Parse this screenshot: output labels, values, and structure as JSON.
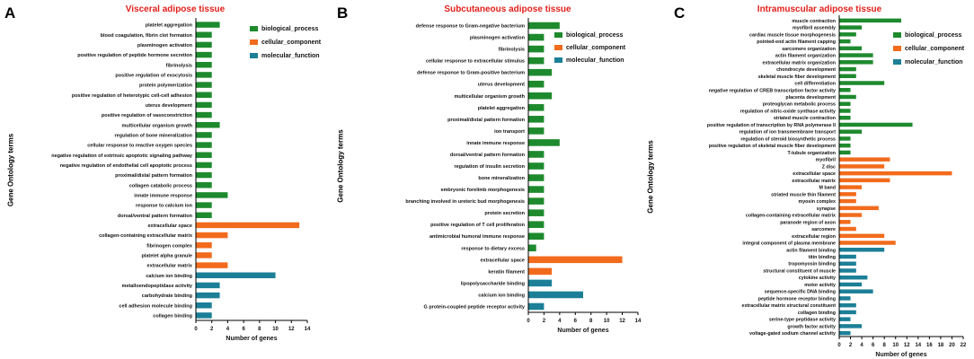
{
  "colors": {
    "biological_process": "#1e8a2e",
    "cellular_component": "#f26b1d",
    "molecular_function": "#1c7f97",
    "title": "#e0201b"
  },
  "chart_data": [
    {
      "type": "bar",
      "orientation": "horizontal",
      "panel_label": "A",
      "title": "Visceral adipose tissue",
      "xlabel": "Number of genes",
      "ylabel": "Gene Ontology terms",
      "xlim": [
        0,
        14
      ],
      "xticks": [
        "0",
        "2",
        "4",
        "6",
        "8",
        "10",
        "12",
        "14"
      ],
      "legend": [
        "biological_process",
        "cellular_component",
        "molecular_function"
      ],
      "legend_position": "top-right",
      "categories": [
        "platelet aggregation",
        "blood coagulation, fibrin clot formation",
        "plasminogen activation",
        "positive regulation of peptide hormone secretion",
        "fibrinolysis",
        "positive regulation of exocytosis",
        "protein polymerization",
        "positive regulation of heterotypic cell-cell adhesion",
        "uterus development",
        "positive regulation of vasoconstriction",
        "multicellular organism growth",
        "regulation of bone mineralization",
        "cellular response to reactive oxygen species",
        "negative regulation of extrinsic apoptotic signaling pathway",
        "negative regulation of endothelial cell apoptotic process",
        "proximal/distal pattern formation",
        "collagen catabolic process",
        "innate immune response",
        "response to calcium ion",
        "dorsal/ventral pattern formation",
        "extracellular space",
        "collagen-containing extracellular matrix",
        "fibrinogen complex",
        "platelet alpha granule",
        "extracellular matrix",
        "calcium ion binding",
        "metalloendopeptidase activity",
        "carbohydrate binding",
        "cell adhesion molecule binding",
        "collagen binding"
      ],
      "values": [
        3,
        2,
        2,
        2,
        2,
        2,
        2,
        2,
        2,
        2,
        3,
        2,
        2,
        2,
        2,
        2,
        2,
        4,
        2,
        2,
        13,
        4,
        2,
        2,
        4,
        10,
        3,
        3,
        2,
        2
      ],
      "groups": [
        "biological_process",
        "biological_process",
        "biological_process",
        "biological_process",
        "biological_process",
        "biological_process",
        "biological_process",
        "biological_process",
        "biological_process",
        "biological_process",
        "biological_process",
        "biological_process",
        "biological_process",
        "biological_process",
        "biological_process",
        "biological_process",
        "biological_process",
        "biological_process",
        "biological_process",
        "biological_process",
        "cellular_component",
        "cellular_component",
        "cellular_component",
        "cellular_component",
        "cellular_component",
        "molecular_function",
        "molecular_function",
        "molecular_function",
        "molecular_function",
        "molecular_function"
      ]
    },
    {
      "type": "bar",
      "orientation": "horizontal",
      "panel_label": "B",
      "title": "Subcutaneous adipose tissue",
      "xlabel": "Number of genes",
      "ylabel": "Gene Ontology terms",
      "xlim": [
        0,
        14
      ],
      "xticks": [
        "0",
        "2",
        "4",
        "6",
        "8",
        "10",
        "12",
        "14"
      ],
      "legend": [
        "biological_process",
        "cellular_component",
        "molecular_function"
      ],
      "legend_position": "top-right",
      "categories": [
        "defense response to Gram-negative bacterium",
        "plasminogen activation",
        "fibrinolysis",
        "cellular response to extracellular stimulus",
        "defense response to Gram-positive bacterium",
        "uterus development",
        "multicellular organism growth",
        "platelet aggregation",
        "proximal/distal pattern formation",
        "ion transport",
        "innate immune response",
        "dorsal/ventral pattern formation",
        "regulation of insulin secretion",
        "bone mineralization",
        "embryonic forelimb morphogenesis",
        "branching involved in ureteric bud morphogenesis",
        "protein secretion",
        "positive regulation of T cell proliferation",
        "antimicrobial humoral immune response",
        "response to dietary excess",
        "extracellular space",
        "keratin filament",
        "lipopolysaccharide binding",
        "calcium ion binding",
        "G protein-coupled peptide receptor activity"
      ],
      "values": [
        4,
        2,
        2,
        2,
        3,
        2,
        3,
        2,
        2,
        2,
        4,
        2,
        2,
        2,
        2,
        2,
        2,
        2,
        2,
        1,
        12,
        3,
        3,
        7,
        2
      ],
      "groups": [
        "biological_process",
        "biological_process",
        "biological_process",
        "biological_process",
        "biological_process",
        "biological_process",
        "biological_process",
        "biological_process",
        "biological_process",
        "biological_process",
        "biological_process",
        "biological_process",
        "biological_process",
        "biological_process",
        "biological_process",
        "biological_process",
        "biological_process",
        "biological_process",
        "biological_process",
        "biological_process",
        "cellular_component",
        "cellular_component",
        "molecular_function",
        "molecular_function",
        "molecular_function"
      ]
    },
    {
      "type": "bar",
      "orientation": "horizontal",
      "panel_label": "C",
      "title": "Intramuscular adipose tissue",
      "xlabel": "Number of genes",
      "ylabel": "Gene Ontology terms",
      "xlim": [
        0,
        22
      ],
      "xticks": [
        "0",
        "2",
        "4",
        "6",
        "8",
        "10",
        "12",
        "14",
        "16",
        "18",
        "20",
        "22"
      ],
      "legend": [
        "biological_process",
        "cellular_component",
        "molecular_function"
      ],
      "legend_position": "top-right",
      "categories": [
        "muscle contraction",
        "myofibril assembly",
        "cardiac muscle tissue morphogenesis",
        "pointed-end actin filament capping",
        "sarcomere organization",
        "actin filament organization",
        "extracellular matrix organization",
        "chondrocyte development",
        "skeletal muscle fiber development",
        "cell differentiation",
        "negative regulation of CREB transcription factor activity",
        "placenta development",
        "proteoglycan metabolic process",
        "regulation of nitric-oxide synthase activity",
        "striated muscle contraction",
        "positive regulation of transcription by RNA polymerase II",
        "regulation of ion transmembrane transport",
        "regulation of steroid biosynthetic process",
        "positive regulation of skeletal muscle fiber development",
        "T-tubule organization",
        "myofibril",
        "Z disc",
        "extracellular space",
        "extracellular matrix",
        "M band",
        "striated muscle thin filament",
        "myosin complex",
        "synapse",
        "collagen-containing extracellular matrix",
        "paranode region of axon",
        "sarcomere",
        "extracellular region",
        "integral component of plasma membrane",
        "actin filament binding",
        "titin binding",
        "tropomyosin binding",
        "structural constituent of muscle",
        "cytokine activity",
        "motor activity",
        "sequence-specific DNA binding",
        "peptide hormone receptor binding",
        "extracellular matrix structural constituent",
        "collagen binding",
        "serine-type peptidase activity",
        "growth factor activity",
        "voltage-gated sodium channel activity"
      ],
      "values": [
        11,
        4,
        3,
        2,
        4,
        6,
        6,
        3,
        3,
        8,
        2,
        3,
        2,
        2,
        2,
        13,
        4,
        2,
        2,
        2,
        9,
        8,
        20,
        9,
        4,
        3,
        3,
        7,
        4,
        2,
        3,
        8,
        10,
        8,
        3,
        3,
        3,
        5,
        4,
        6,
        2,
        3,
        3,
        2,
        4,
        2
      ],
      "groups": [
        "biological_process",
        "biological_process",
        "biological_process",
        "biological_process",
        "biological_process",
        "biological_process",
        "biological_process",
        "biological_process",
        "biological_process",
        "biological_process",
        "biological_process",
        "biological_process",
        "biological_process",
        "biological_process",
        "biological_process",
        "biological_process",
        "biological_process",
        "biological_process",
        "biological_process",
        "biological_process",
        "cellular_component",
        "cellular_component",
        "cellular_component",
        "cellular_component",
        "cellular_component",
        "cellular_component",
        "cellular_component",
        "cellular_component",
        "cellular_component",
        "cellular_component",
        "cellular_component",
        "cellular_component",
        "cellular_component",
        "molecular_function",
        "molecular_function",
        "molecular_function",
        "molecular_function",
        "molecular_function",
        "molecular_function",
        "molecular_function",
        "molecular_function",
        "molecular_function",
        "molecular_function",
        "molecular_function",
        "molecular_function",
        "molecular_function"
      ]
    }
  ]
}
